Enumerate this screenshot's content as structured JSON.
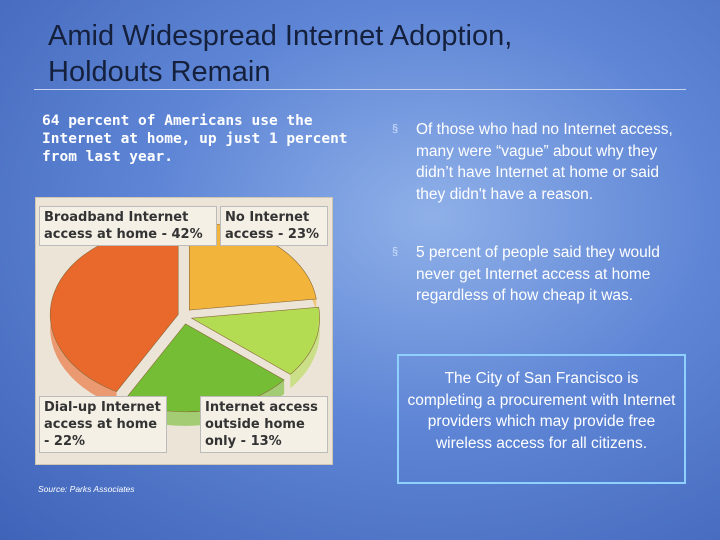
{
  "title": "Amid Widespread Internet Adoption, Holdouts Remain",
  "subtitle": "64 percent of Americans use the Internet at home, up just 1 percent from last year.",
  "bullets": [
    "Of those who had no Internet access, many were “vague” about why they didn’t have Internet at home or said they didn't have a reason.",
    "5 percent of people said they would never get Internet access at home regardless of how cheap it was."
  ],
  "callout": "The City of San Francisco is completing a procurement with Internet providers which may provide free wireless access for all citizens.",
  "source": "Source: Parks Associates",
  "chart_data": {
    "type": "pie",
    "categories": [
      "Broadband Internet access at home - 42%",
      "No Internet access - 23%",
      "Internet access outside home only - 13%",
      "Dial-up Internet access at home - 22%"
    ],
    "values": [
      42,
      23,
      13,
      22
    ],
    "colors": [
      "#e9682c",
      "#f3b43c",
      "#b4dc52",
      "#74bd34"
    ]
  }
}
